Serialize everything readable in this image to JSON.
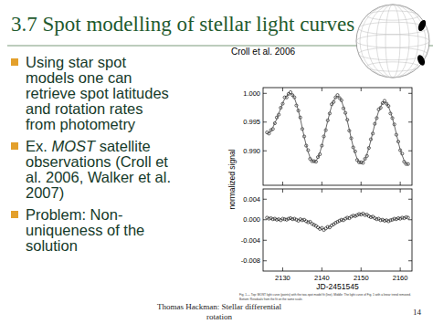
{
  "slide": {
    "title": "3.7 Spot modelling of stellar light curves",
    "bullets": [
      {
        "lines": [
          "Using star spot",
          "models one can",
          "retrieve spot latitudes",
          "and rotation rates",
          "from photometry"
        ]
      },
      {
        "lines": [
          "Ex. MOST satellite",
          "observations (Croll et",
          "al. 2006, Walker et al.",
          "2007)"
        ],
        "emphasis": "MOST"
      },
      {
        "lines": [
          "Problem: Non-",
          "uniqueness of the",
          "solution"
        ]
      }
    ],
    "footer": {
      "lines": [
        "Thomas Hackman: Stellar differential",
        "rotation"
      ],
      "page": "14"
    }
  },
  "figure": {
    "credit": "Croll et al. 2006",
    "caption": [
      "Fig. 1.— Top: MOST light curve (points) with the two-spot model fit (line). Middle: The light curve of Fig. 1 with a linear trend removed.",
      "Bottom: Residuals from the fit on the same scale."
    ]
  },
  "chart_data": [
    {
      "type": "scatter",
      "ylabel": "normalized signal",
      "tick_labels": "y",
      "xlim": [
        2125,
        2163
      ],
      "xticks": [
        2130,
        2140,
        2150,
        2160
      ],
      "ylim": [
        0.984,
        1.001
      ],
      "yticks": [
        {
          "value": 1.0,
          "label": "1.000"
        },
        {
          "value": 0.995,
          "label": "0.995"
        },
        {
          "value": 0.99,
          "label": "0.990"
        }
      ],
      "x": [
        2126,
        2126.5,
        2127,
        2127.5,
        2128,
        2128.5,
        2129,
        2129.5,
        2130,
        2130.5,
        2131,
        2131.5,
        2132,
        2132.5,
        2133,
        2133.5,
        2134,
        2134.5,
        2135,
        2135.5,
        2136,
        2136.5,
        2137,
        2137.5,
        2138,
        2138.5,
        2139,
        2139.5,
        2140,
        2140.5,
        2141,
        2141.5,
        2142,
        2142.5,
        2143,
        2143.5,
        2144,
        2144.5,
        2145,
        2145.5,
        2146,
        2146.5,
        2147,
        2147.5,
        2148,
        2148.5,
        2149,
        2149.5,
        2150,
        2150.5,
        2151,
        2151.5,
        2152,
        2152.5,
        2153,
        2153.5,
        2154,
        2154.5,
        2155,
        2155.5,
        2156,
        2156.5,
        2157,
        2157.5,
        2158,
        2158.5,
        2159,
        2159.5,
        2160,
        2160.5,
        2161,
        2161.5,
        2162
      ],
      "series": [
        {
          "type": "scatter",
          "marker": "circle",
          "color": "#000000",
          "values": [
            0.9932,
            0.993,
            0.9936,
            0.9938,
            0.9948,
            0.9958,
            0.9963,
            0.9975,
            0.9982,
            0.9993,
            0.9993,
            0.9999,
            1.0002,
            0.9997,
            0.9993,
            0.9979,
            0.997,
            0.9958,
            0.9938,
            0.9925,
            0.9909,
            0.9901,
            0.9886,
            0.9882,
            0.9882,
            0.9881,
            0.9889,
            0.9894,
            0.9909,
            0.9925,
            0.9936,
            0.9953,
            0.9965,
            0.9981,
            0.9985,
            0.9993,
            0.9997,
            0.9992,
            0.9988,
            0.9974,
            0.9966,
            0.9954,
            0.9935,
            0.9922,
            0.9906,
            0.9899,
            0.9884,
            0.988,
            0.988,
            0.9879,
            0.9886,
            0.9891,
            0.9905,
            0.992,
            0.993,
            0.9947,
            0.9957,
            0.9972,
            0.9975,
            0.9983,
            0.9987,
            0.9982,
            0.9978,
            0.9965,
            0.9957,
            0.9946,
            0.9928,
            0.9916,
            0.9901,
            0.9895,
            0.9881,
            0.9877,
            0.9877
          ]
        },
        {
          "type": "line",
          "line_style": "solid",
          "color": "#555555",
          "values": [
            0.993,
            0.9931,
            0.9935,
            0.9941,
            0.9948,
            0.9956,
            0.9965,
            0.9974,
            0.9983,
            0.999,
            0.9995,
            0.9999,
            1.0,
            0.9998,
            0.9992,
            0.9982,
            0.997,
            0.9956,
            0.994,
            0.9924,
            0.991,
            0.9898,
            0.9888,
            0.9882,
            0.988,
            0.9882,
            0.9888,
            0.9897,
            0.9909,
            0.9923,
            0.9938,
            0.9952,
            0.9966,
            0.9978,
            0.9987,
            0.9993,
            0.9995,
            0.9993,
            0.9987,
            0.9977,
            0.9966,
            0.9952,
            0.9937,
            0.9921,
            0.9907,
            0.9896,
            0.9886,
            0.988,
            0.9878,
            0.988,
            0.9885,
            0.9894,
            0.9905,
            0.9918,
            0.9932,
            0.9946,
            0.9958,
            0.9969,
            0.9977,
            0.9983,
            0.9985,
            0.9983,
            0.9977,
            0.9968,
            0.9957,
            0.9944,
            0.993,
            0.9915,
            0.9902,
            0.9892,
            0.9883,
            0.9877,
            0.9875
          ]
        }
      ]
    },
    {
      "type": "scatter",
      "xlabel": "JD-2451545",
      "tick_labels": true,
      "xlim": [
        2125,
        2163
      ],
      "xticks": [
        2130,
        2140,
        2150,
        2160
      ],
      "ylim": [
        -0.01,
        0.006
      ],
      "yticks": [
        {
          "value": 0.004,
          "label": "0.004"
        },
        {
          "value": 0,
          "label": "0.000"
        },
        {
          "value": -0.004,
          "label": "-0.004"
        },
        {
          "value": -0.008,
          "label": "-0.008"
        }
      ],
      "x": [
        2126,
        2126.5,
        2127,
        2127.5,
        2128,
        2128.5,
        2129,
        2129.5,
        2130,
        2130.5,
        2131,
        2131.5,
        2132,
        2132.5,
        2133,
        2133.5,
        2134,
        2134.5,
        2135,
        2135.5,
        2136,
        2136.5,
        2137,
        2137.5,
        2138,
        2138.5,
        2139,
        2139.5,
        2140,
        2140.5,
        2141,
        2141.5,
        2142,
        2142.5,
        2143,
        2143.5,
        2144,
        2144.5,
        2145,
        2145.5,
        2146,
        2146.5,
        2147,
        2147.5,
        2148,
        2148.5,
        2149,
        2149.5,
        2150,
        2150.5,
        2151,
        2151.5,
        2152,
        2152.5,
        2153,
        2153.5,
        2154,
        2154.5,
        2155,
        2155.5,
        2156,
        2156.5,
        2157,
        2157.5,
        2158,
        2158.5,
        2159,
        2159.5,
        2160,
        2160.5,
        2161,
        2161.5,
        2162
      ],
      "series": [
        {
          "type": "scatter",
          "marker": "circle",
          "color": "#000000",
          "values": [
            0.0004,
            0.0002,
            0.0003,
            0.0001,
            0.0002,
            0.0,
            0.0001,
            -0.0001,
            0.0002,
            0.0001,
            0.0,
            0.0002,
            0.0003,
            0.0001,
            0.0002,
            0.0,
            -0.0002,
            0.0001,
            -0.0001,
            0.0,
            -0.0003,
            -0.0005,
            -0.0004,
            -0.0008,
            -0.001,
            -0.0012,
            -0.0015,
            -0.0018,
            -0.0016,
            -0.002,
            -0.0017,
            -0.0014,
            -0.0015,
            -0.0011,
            -0.0009,
            -0.0006,
            -0.0004,
            -0.0002,
            0.0,
            -0.0001,
            0.0002,
            0.0004,
            0.0003,
            0.0006,
            0.0008,
            0.0007,
            0.0009,
            0.0011,
            0.001,
            0.0012,
            0.0009,
            0.001,
            0.0007,
            0.0005,
            0.0006,
            0.0003,
            0.0001,
            0.0002,
            -0.0001,
            0.0,
            -0.0002,
            -0.0001,
            -0.0003,
            -0.0001,
            0.0,
            0.0002,
            0.0001,
            0.0003,
            0.0002,
            0.0004,
            0.0003,
            0.0005,
            0.0004
          ]
        }
      ]
    }
  ]
}
